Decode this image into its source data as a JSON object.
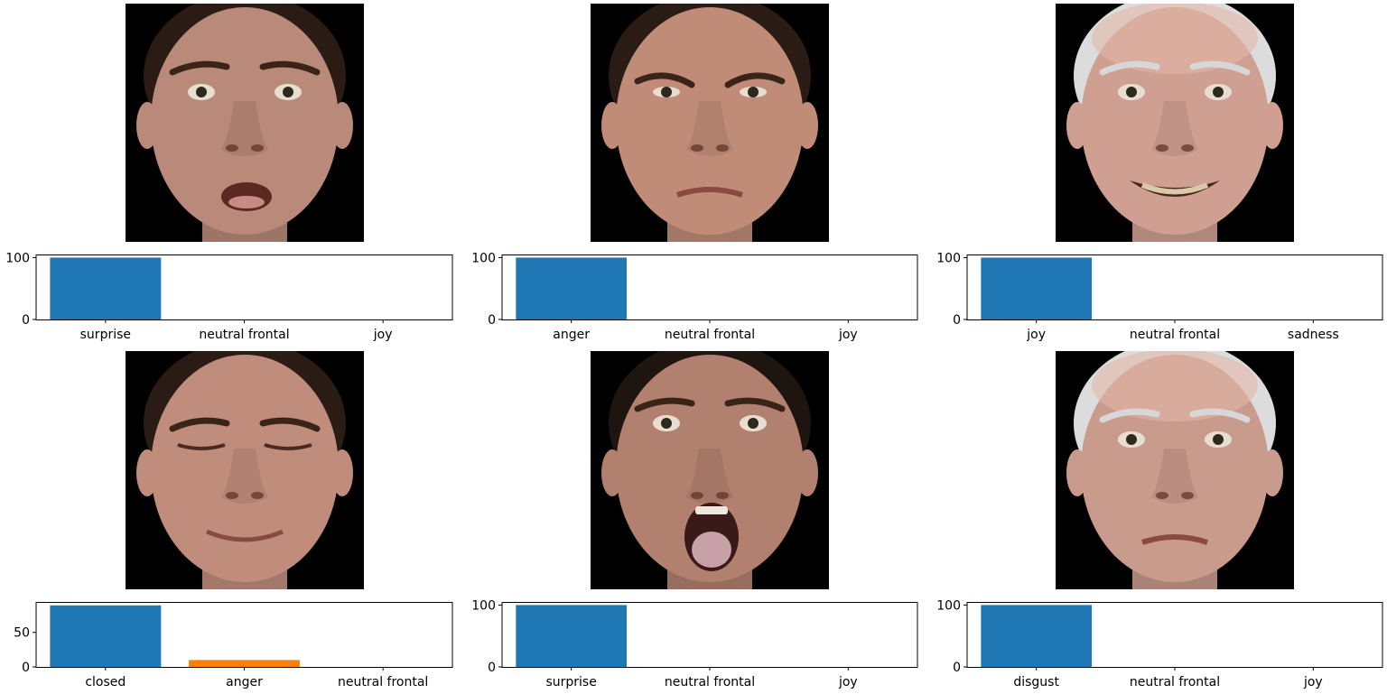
{
  "chart_data": [
    {
      "type": "bar",
      "categories": [
        "surprise",
        "neutral frontal",
        "joy"
      ],
      "values": [
        100,
        0,
        0
      ],
      "ylim": [
        0,
        105
      ],
      "yticks": [
        0,
        100
      ],
      "bar_colors": [
        "#1f77b4",
        "#ff7f0e",
        "#2ca02c"
      ],
      "image": {
        "skin": "#b98979",
        "hair": "#2a1b14",
        "expression": "surprise"
      }
    },
    {
      "type": "bar",
      "categories": [
        "anger",
        "neutral frontal",
        "joy"
      ],
      "values": [
        100,
        0,
        0
      ],
      "ylim": [
        0,
        105
      ],
      "yticks": [
        0,
        100
      ],
      "bar_colors": [
        "#1f77b4",
        "#ff7f0e",
        "#2ca02c"
      ],
      "image": {
        "skin": "#c08c78",
        "hair": "#2a1b14",
        "expression": "anger"
      }
    },
    {
      "type": "bar",
      "categories": [
        "joy",
        "neutral frontal",
        "sadness"
      ],
      "values": [
        100,
        0,
        0
      ],
      "ylim": [
        0,
        105
      ],
      "yticks": [
        0,
        100
      ],
      "bar_colors": [
        "#1f77b4",
        "#ff7f0e",
        "#2ca02c"
      ],
      "image": {
        "skin": "#cf9f92",
        "hair": "#dcdcdc",
        "expression": "joy"
      }
    },
    {
      "type": "bar",
      "categories": [
        "closed",
        "anger",
        "neutral frontal"
      ],
      "values": [
        89,
        10,
        0
      ],
      "ylim": [
        0,
        94
      ],
      "yticks": [
        0,
        50
      ],
      "bar_colors": [
        "#1f77b4",
        "#ff7f0e",
        "#2ca02c"
      ],
      "image": {
        "skin": "#c08c7c",
        "hair": "#2a1b14",
        "expression": "closed"
      }
    },
    {
      "type": "bar",
      "categories": [
        "surprise",
        "neutral frontal",
        "joy"
      ],
      "values": [
        100,
        0,
        0
      ],
      "ylim": [
        0,
        105
      ],
      "yticks": [
        0,
        100
      ],
      "bar_colors": [
        "#1f77b4",
        "#ff7f0e",
        "#2ca02c"
      ],
      "image": {
        "skin": "#b1806f",
        "hair": "#1e1410",
        "expression": "scream"
      }
    },
    {
      "type": "bar",
      "categories": [
        "disgust",
        "neutral frontal",
        "joy"
      ],
      "values": [
        100,
        0,
        0
      ],
      "ylim": [
        0,
        105
      ],
      "yticks": [
        0,
        100
      ],
      "bar_colors": [
        "#1f77b4",
        "#ff7f0e",
        "#2ca02c"
      ],
      "image": {
        "skin": "#c99b8c",
        "hair": "#dcdcdc",
        "expression": "disgust"
      }
    }
  ]
}
